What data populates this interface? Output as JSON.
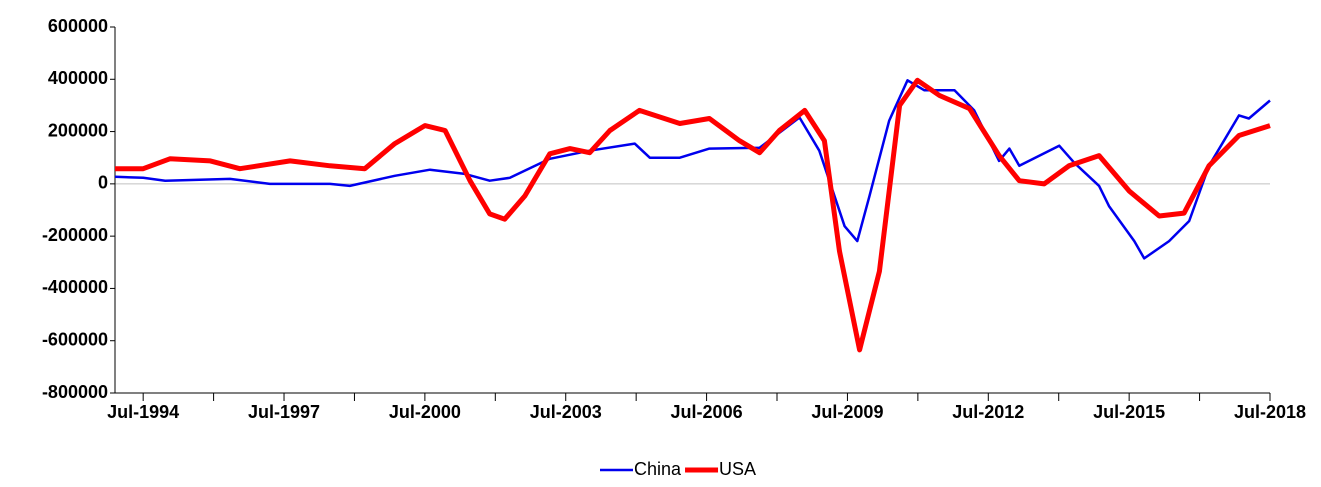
{
  "chart_data": {
    "type": "line",
    "xlim": [
      1993.9,
      2018.5
    ],
    "xticks": [
      {
        "value": 1994.5,
        "label": "Jul-1994"
      },
      {
        "value": 1997.5,
        "label": "Jul-1997"
      },
      {
        "value": 2000.5,
        "label": "Jul-2000"
      },
      {
        "value": 2003.5,
        "label": "Jul-2003"
      },
      {
        "value": 2006.5,
        "label": "Jul-2006"
      },
      {
        "value": 2009.5,
        "label": "Jul-2009"
      },
      {
        "value": 2012.5,
        "label": "Jul-2012"
      },
      {
        "value": 2015.5,
        "label": "Jul-2015"
      },
      {
        "value": 2018.5,
        "label": "Jul-2018"
      }
    ],
    "xminorticks": [
      1996,
      1999,
      2002,
      2005,
      2008,
      2011,
      2014,
      2017
    ],
    "ylim": [
      -800000,
      600000
    ],
    "yticks": [
      -800000,
      -600000,
      -400000,
      -200000,
      0,
      200000,
      400000,
      600000
    ],
    "legend": "bottom",
    "series": [
      {
        "name": "China",
        "color": "#0000ee",
        "width": 2.5,
        "x": [
          1993.9,
          1994.5,
          1994.97,
          1996.35,
          1997.2,
          1998.48,
          1998.9,
          1999.86,
          2000.61,
          2001.35,
          2001.88,
          2002.31,
          2003.16,
          2004.01,
          2004.97,
          2005.29,
          2005.93,
          2006.56,
          2007.63,
          2008.48,
          2008.9,
          2009.44,
          2009.71,
          2009.97,
          2010.39,
          2010.78,
          2011.14,
          2011.78,
          2012.2,
          2012.73,
          2012.95,
          2013.16,
          2014.01,
          2014.33,
          2014.86,
          2015.07,
          2015.61,
          2015.82,
          2016.35,
          2016.78,
          2017.2,
          2017.84,
          2018.05,
          2018.5
        ],
        "values": [
          27000,
          23000,
          12000,
          19000,
          0,
          0,
          -8000,
          31000,
          54000,
          38000,
          12000,
          23000,
          96000,
          127000,
          154000,
          100000,
          100000,
          135000,
          138000,
          254000,
          127000,
          -162000,
          -219000,
          -46000,
          242000,
          396000,
          358000,
          358000,
          281000,
          88000,
          135000,
          69000,
          146000,
          81000,
          -8000,
          -85000,
          -219000,
          -285000,
          -219000,
          -142000,
          69000,
          262000,
          250000,
          319000
        ]
      },
      {
        "name": "USA",
        "color": "#ff0000",
        "width": 5,
        "x": [
          1993.9,
          1994.5,
          1995.07,
          1995.93,
          1996.56,
          1997.63,
          1998.48,
          1999.22,
          1999.86,
          2000.5,
          2000.93,
          2001.46,
          2001.88,
          2002.2,
          2002.63,
          2003.16,
          2003.59,
          2004.01,
          2004.44,
          2005.07,
          2005.93,
          2006.56,
          2007.2,
          2007.63,
          2008.05,
          2008.59,
          2009.01,
          2009.33,
          2009.76,
          2010.18,
          2010.61,
          2010.99,
          2011.46,
          2012.1,
          2012.73,
          2013.16,
          2013.69,
          2014.22,
          2014.86,
          2015.5,
          2016.14,
          2016.67,
          2017.2,
          2017.84,
          2018.5
        ],
        "values": [
          58000,
          58000,
          96000,
          88000,
          58000,
          88000,
          69000,
          58000,
          154000,
          223000,
          204000,
          12000,
          -115000,
          -135000,
          -46000,
          115000,
          135000,
          119000,
          204000,
          281000,
          231000,
          250000,
          165000,
          119000,
          204000,
          281000,
          165000,
          -258000,
          -635000,
          -335000,
          300000,
          396000,
          338000,
          288000,
          108000,
          12000,
          0,
          69000,
          108000,
          -27000,
          -123000,
          -112000,
          69000,
          185000,
          223000
        ]
      }
    ]
  }
}
